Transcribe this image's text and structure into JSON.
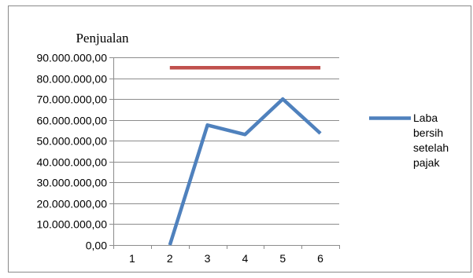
{
  "chart_data": {
    "type": "line",
    "title": "Penjualan",
    "xlabel": "",
    "ylabel": "",
    "categories": [
      "1",
      "2",
      "3",
      "4",
      "5",
      "6"
    ],
    "y_tick_labels": [
      "0,00",
      "10.000.000,00",
      "20.000.000,00",
      "30.000.000,00",
      "40.000.000,00",
      "50.000.000,00",
      "60.000.000,00",
      "70.000.000,00",
      "80.000.000,00",
      "90.000.000,00"
    ],
    "ylim": [
      0,
      90000000
    ],
    "grid": true,
    "legend_position": "right",
    "series": [
      {
        "name": "",
        "color": "#c0504d",
        "values": [
          null,
          85000000,
          85000000,
          85000000,
          85000000,
          85000000
        ]
      },
      {
        "name": "Laba bersih setelah pajak",
        "color": "#4f81bd",
        "values": [
          null,
          0,
          57500000,
          53000000,
          70000000,
          53500000
        ]
      }
    ],
    "legend": {
      "lines": [
        "Laba",
        "bersih",
        "setelah",
        "pajak"
      ]
    }
  }
}
